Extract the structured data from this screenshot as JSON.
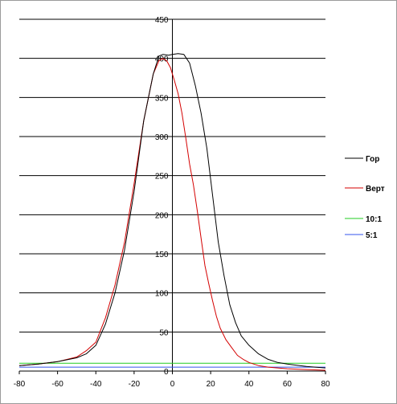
{
  "chart_data": {
    "type": "line",
    "title": "",
    "xlabel": "",
    "ylabel": "",
    "xlim": [
      -80,
      80
    ],
    "ylim": [
      0,
      450
    ],
    "x_ticks": [
      "-80",
      "-60",
      "-40",
      "-20",
      "0",
      "20",
      "40",
      "60",
      "80"
    ],
    "y_ticks": [
      "0",
      "50",
      "100",
      "150",
      "200",
      "250",
      "300",
      "350",
      "400",
      "450"
    ],
    "grid": "horizontal",
    "legend_position": "right",
    "series": [
      {
        "name": "Гор",
        "color": "#000000",
        "x": [
          -80,
          -70,
          -60,
          -50,
          -45,
          -40,
          -35,
          -30,
          -25,
          -20,
          -15,
          -10,
          -7,
          -5,
          -2,
          0,
          3,
          6,
          9,
          12,
          15,
          18,
          21,
          24,
          27,
          30,
          33,
          36,
          40,
          45,
          50,
          55,
          60,
          70,
          80
        ],
        "y": [
          7,
          9,
          12,
          17,
          22,
          33,
          60,
          100,
          155,
          230,
          320,
          380,
          403,
          405,
          404,
          405,
          406,
          405,
          394,
          365,
          330,
          285,
          225,
          165,
          122,
          85,
          62,
          45,
          33,
          22,
          15,
          11,
          9,
          6,
          4
        ]
      },
      {
        "name": "Верт",
        "color": "#d40000",
        "x": [
          -80,
          -70,
          -60,
          -50,
          -45,
          -40,
          -35,
          -30,
          -25,
          -20,
          -15,
          -10,
          -7,
          -5,
          -3,
          -1,
          1,
          3,
          5,
          7,
          9,
          11,
          13,
          15,
          17,
          19,
          21,
          23,
          25,
          28,
          31,
          34,
          37,
          40,
          45,
          50,
          55,
          60,
          70,
          80
        ],
        "y": [
          7,
          9,
          12,
          18,
          26,
          37,
          68,
          110,
          165,
          240,
          320,
          380,
          397,
          400,
          397,
          388,
          372,
          355,
          330,
          298,
          265,
          238,
          205,
          170,
          135,
          112,
          90,
          70,
          55,
          40,
          30,
          20,
          15,
          11,
          7,
          5,
          4,
          3,
          2,
          1
        ]
      },
      {
        "name": "10:1",
        "color": "#22cc22",
        "x": [
          -80,
          80
        ],
        "y": [
          10,
          10
        ]
      },
      {
        "name": "5:1",
        "color": "#3355ee",
        "x": [
          -80,
          80
        ],
        "y": [
          5,
          5
        ]
      }
    ]
  }
}
